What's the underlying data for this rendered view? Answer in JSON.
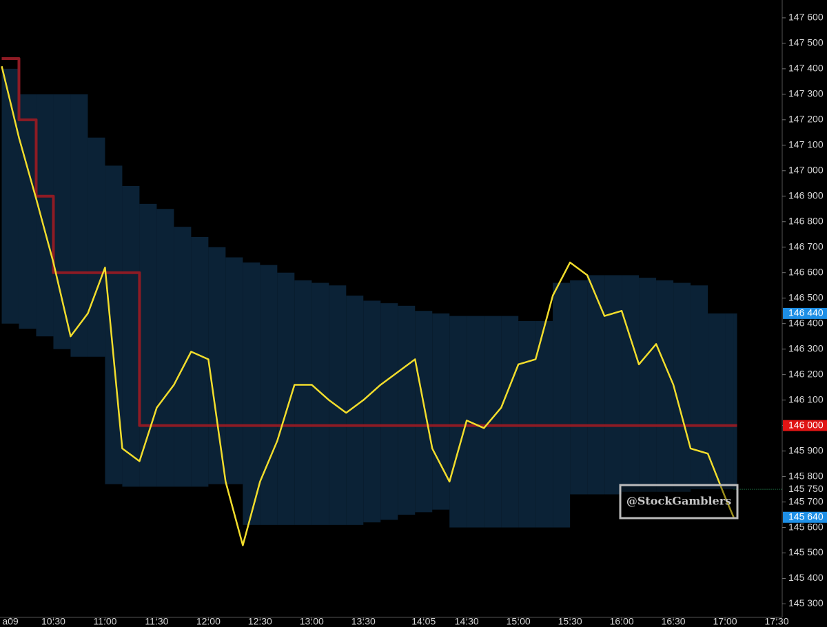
{
  "chart_data": {
    "type": "line",
    "x": [
      "10:00",
      "10:10",
      "10:20",
      "10:30",
      "10:40",
      "10:50",
      "11:00",
      "11:10",
      "11:20",
      "11:30",
      "11:40",
      "11:50",
      "12:00",
      "12:10",
      "12:20",
      "12:30",
      "12:40",
      "12:50",
      "13:00",
      "13:10",
      "13:20",
      "13:30",
      "13:40",
      "13:50",
      "14:00",
      "14:10",
      "14:20",
      "14:30",
      "14:40",
      "14:50",
      "15:00",
      "15:10",
      "15:20",
      "15:30",
      "15:40",
      "15:50",
      "16:00",
      "16:10",
      "16:20",
      "16:30",
      "16:40",
      "16:50",
      "17:00",
      "17:05"
    ],
    "series": [
      {
        "color": "#f2dd2c",
        "style": "line",
        "values": [
          147410,
          147130,
          146890,
          146640,
          146350,
          146440,
          146620,
          145910,
          145860,
          146070,
          146160,
          146290,
          146260,
          145780,
          145530,
          145780,
          145940,
          146160,
          146160,
          146100,
          146050,
          146100,
          146160,
          146210,
          146260,
          145910,
          145780,
          146020,
          145990,
          146070,
          146240,
          146260,
          146510,
          146640,
          146590,
          146430,
          146450,
          146240,
          146320,
          146160,
          145910,
          145890,
          145720,
          145640
        ]
      },
      {
        "color": "#8e1b24",
        "style": "step",
        "values": [
          147440,
          147200,
          146900,
          146600,
          146600,
          146600,
          146600,
          146600,
          146000,
          146000,
          146000,
          146000,
          146000,
          146000,
          146000,
          146000,
          146000,
          146000,
          146000,
          146000,
          146000,
          146000,
          146000,
          146000,
          146000,
          146000,
          146000,
          146000,
          146000,
          146000,
          146000,
          146000,
          146000,
          146000,
          146000,
          146000,
          146000,
          146000,
          146000,
          146000,
          146000,
          146000,
          146000,
          146000
        ]
      }
    ],
    "band": {
      "color": "#0b2236",
      "upper": [
        147400,
        147300,
        147300,
        147300,
        147300,
        147130,
        147020,
        146940,
        146870,
        146850,
        146780,
        146740,
        146700,
        146660,
        146640,
        146630,
        146600,
        146570,
        146560,
        146550,
        146510,
        146490,
        146480,
        146470,
        146450,
        146440,
        146430,
        146430,
        146430,
        146430,
        146410,
        146410,
        146560,
        146570,
        146590,
        146590,
        146590,
        146580,
        146570,
        146560,
        146550,
        146440,
        146440,
        146440
      ],
      "lower": [
        146400,
        146380,
        146350,
        146300,
        146270,
        146270,
        145770,
        145760,
        145760,
        145760,
        145760,
        145760,
        145770,
        145770,
        145610,
        145610,
        145610,
        145610,
        145610,
        145610,
        145610,
        145620,
        145630,
        145650,
        145660,
        145670,
        145600,
        145600,
        145600,
        145600,
        145600,
        145600,
        145600,
        145730,
        145730,
        145730,
        145740,
        145740,
        145740,
        145740,
        145750,
        145750,
        145750,
        145750
      ]
    },
    "xlim": [
      "09:59",
      "17:34"
    ],
    "xticks": [
      {
        "value": "10:05",
        "label": "a09"
      },
      "10:30",
      "11:00",
      "11:30",
      "12:00",
      "12:30",
      "13:00",
      "13:30",
      "14:05",
      "14:30",
      "15:00",
      "15:30",
      "16:00",
      "16:30",
      "17:00",
      "17:30"
    ],
    "ylim": [
      145250,
      147670
    ],
    "yticks": [
      {
        "value": 145300,
        "label": "145 300"
      },
      {
        "value": 145400,
        "label": "145 400"
      },
      {
        "value": 145500,
        "label": "145 500"
      },
      {
        "value": 145600,
        "label": "145 600"
      },
      {
        "value": 145700,
        "label": "145 700"
      },
      {
        "value": 145800,
        "label": "145 800"
      },
      {
        "value": 145900,
        "label": "145 900"
      },
      {
        "value": 146000,
        "label": "146 000"
      },
      {
        "value": 146100,
        "label": "146 100"
      },
      {
        "value": 146200,
        "label": "146 200"
      },
      {
        "value": 146300,
        "label": "146 300"
      },
      {
        "value": 146400,
        "label": "146 400"
      },
      {
        "value": 146500,
        "label": "146 500"
      },
      {
        "value": 146600,
        "label": "146 600"
      },
      {
        "value": 146700,
        "label": "146 700"
      },
      {
        "value": 146800,
        "label": "146 800"
      },
      {
        "value": 146900,
        "label": "146 900"
      },
      {
        "value": 147000,
        "label": "147 000"
      },
      {
        "value": 147100,
        "label": "147 100"
      },
      {
        "value": 147200,
        "label": "147 200"
      },
      {
        "value": 147300,
        "label": "147 300"
      },
      {
        "value": 147400,
        "label": "147 400"
      },
      {
        "value": 147500,
        "label": "147 500"
      },
      {
        "value": 147600,
        "label": "147 600"
      }
    ],
    "price_markers": [
      {
        "value": 146440,
        "label": "146 440",
        "color": "#1e8fe6"
      },
      {
        "value": 146000,
        "label": "146 000",
        "color": "#e01515"
      },
      {
        "value": 145640,
        "label": "145 640",
        "color": "#1e8fe6"
      }
    ],
    "last_line": {
      "value": 145750,
      "label": "145 750",
      "color": "#2fae6a"
    },
    "watermark": "@StockGamblers"
  }
}
